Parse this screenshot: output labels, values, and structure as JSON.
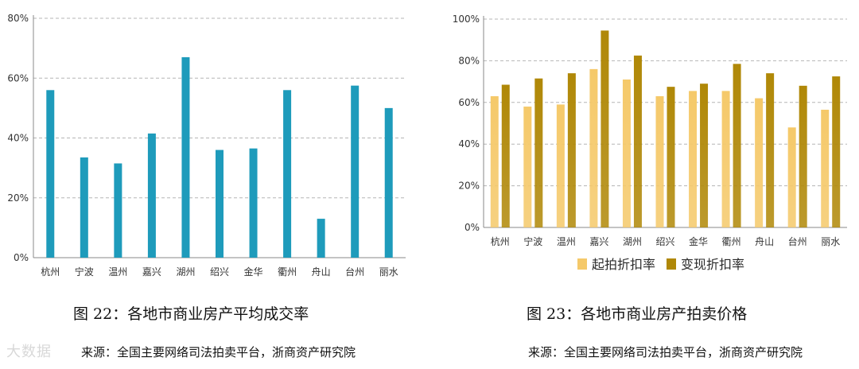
{
  "chart_data": [
    {
      "type": "bar",
      "categories": [
        "杭州",
        "宁波",
        "温州",
        "嘉兴",
        "湖州",
        "绍兴",
        "金华",
        "衢州",
        "舟山",
        "台州",
        "丽水"
      ],
      "values": [
        56,
        33.5,
        31.5,
        41.5,
        67,
        36,
        36.5,
        56,
        13,
        57.5,
        50
      ],
      "y_ticks": [
        "0%",
        "20%",
        "40%",
        "60%",
        "80%"
      ],
      "ylim": [
        0,
        80
      ],
      "grid": true,
      "color": "#1E9BBB"
    },
    {
      "type": "bar",
      "categories": [
        "杭州",
        "宁波",
        "温州",
        "嘉兴",
        "湖州",
        "绍兴",
        "金华",
        "衢州",
        "舟山",
        "台州",
        "丽水"
      ],
      "series": [
        {
          "name": "起拍折扣率",
          "values": [
            63,
            58,
            59,
            76,
            71,
            63,
            65.5,
            65.5,
            62,
            48,
            56.5
          ],
          "color": "#F5C96A"
        },
        {
          "name": "变现折扣率",
          "values": [
            68.5,
            71.5,
            74,
            94.5,
            82.5,
            67.5,
            69,
            78.5,
            74,
            68,
            72.5
          ],
          "color": "#B08807"
        }
      ],
      "y_ticks": [
        "0%",
        "20%",
        "40%",
        "60%",
        "80%",
        "100%"
      ],
      "ylim": [
        0,
        100
      ],
      "grid": true,
      "legend_position": "bottom"
    }
  ],
  "captions": {
    "fig22": "图 22：各地市商业房产平均成交率",
    "fig23": "图 23：各地市商业房产拍卖价格",
    "source_left": "来源：全国主要网络司法拍卖平台，浙商资产研究院",
    "source_right": "来源：全国主要网络司法拍卖平台，浙商资产研究院"
  },
  "watermark": "大数据"
}
